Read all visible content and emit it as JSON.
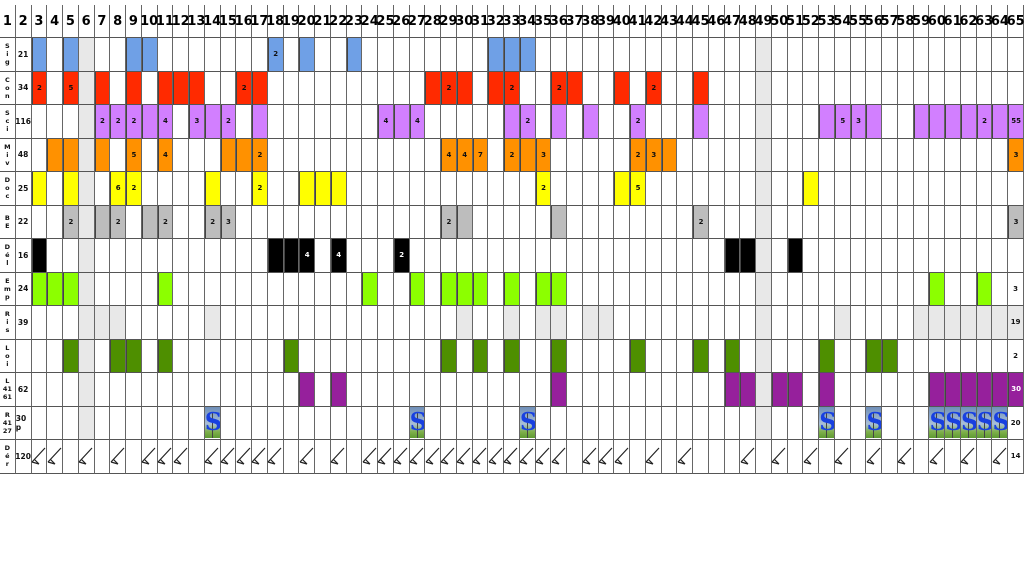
{
  "palette": {
    "blue": "#6fa0e6",
    "red": "#ff2a00",
    "violet": "#d27fff",
    "orange": "#ff9100",
    "yellow": "#ffff00",
    "gray": "#bdbdbd",
    "black": "#000000",
    "lime": "#8cff00",
    "lightgray": "#e8e8e8",
    "green": "#4e8f00",
    "purple": "#96209c",
    "column_shade": "#e8e8e8"
  },
  "header": [
    "1",
    "2",
    "3",
    "4",
    "5",
    "6",
    "7",
    "8",
    "9",
    "10",
    "11",
    "12",
    "13",
    "14",
    "15",
    "16",
    "17",
    "18",
    "19",
    "20",
    "21",
    "22",
    "23",
    "24",
    "25",
    "26",
    "27",
    "28",
    "29",
    "30",
    "31",
    "32",
    "33",
    "34",
    "35",
    "36",
    "37",
    "38",
    "39",
    "40",
    "41",
    "42",
    "43",
    "44",
    "45",
    "46",
    "47",
    "48",
    "49",
    "50",
    "51",
    "52",
    "53",
    "54",
    "55",
    "56",
    "57",
    "58",
    "59",
    "60",
    "61",
    "62",
    "63",
    "64",
    "65"
  ],
  "shaded_columns": [
    6,
    49
  ],
  "rows": [
    {
      "label": [
        "S",
        "i",
        "g"
      ],
      "total": "21",
      "fill": "blue",
      "cells": [
        {
          "c": 3
        },
        {
          "c": 5
        },
        {
          "c": 9
        },
        {
          "c": 10
        },
        {
          "c": 18,
          "t": "2"
        },
        {
          "c": 20
        },
        {
          "c": 23
        },
        {
          "c": 32
        },
        {
          "c": 33
        },
        {
          "c": 34
        }
      ]
    },
    {
      "label": [
        "C",
        "o",
        "n"
      ],
      "total": "34",
      "fill": "red",
      "cells": [
        {
          "c": 3,
          "t": "2"
        },
        {
          "c": 5,
          "t": "5"
        },
        {
          "c": 7
        },
        {
          "c": 9
        },
        {
          "c": 11
        },
        {
          "c": 12
        },
        {
          "c": 13
        },
        {
          "c": 16,
          "t": "2"
        },
        {
          "c": 17
        },
        {
          "c": 28
        },
        {
          "c": 29,
          "t": "2"
        },
        {
          "c": 30
        },
        {
          "c": 32
        },
        {
          "c": 33,
          "t": "2"
        },
        {
          "c": 36,
          "t": "2"
        },
        {
          "c": 37
        },
        {
          "c": 40
        },
        {
          "c": 42,
          "t": "2"
        },
        {
          "c": 45
        }
      ]
    },
    {
      "label": [
        "S",
        "c",
        "i"
      ],
      "total": "116",
      "fill": "violet",
      "cells": [
        {
          "c": 7,
          "t": "2"
        },
        {
          "c": 8,
          "t": "2"
        },
        {
          "c": 9,
          "t": "2"
        },
        {
          "c": 10
        },
        {
          "c": 11,
          "t": "4"
        },
        {
          "c": 13,
          "t": "3"
        },
        {
          "c": 14
        },
        {
          "c": 15,
          "t": "2"
        },
        {
          "c": 17
        },
        {
          "c": 25,
          "t": "4"
        },
        {
          "c": 26
        },
        {
          "c": 27,
          "t": "4"
        },
        {
          "c": 33
        },
        {
          "c": 34,
          "t": "2"
        },
        {
          "c": 36
        },
        {
          "c": 38
        },
        {
          "c": 41,
          "t": "2"
        },
        {
          "c": 45
        },
        {
          "c": 53
        },
        {
          "c": 54,
          "t": "5"
        },
        {
          "c": 55,
          "t": "3"
        },
        {
          "c": 56
        },
        {
          "c": 59
        },
        {
          "c": 60
        },
        {
          "c": 61
        },
        {
          "c": 62
        },
        {
          "c": 63,
          "t": "2"
        },
        {
          "c": 64
        },
        {
          "c": 65,
          "t": "55"
        }
      ]
    },
    {
      "label": [
        "M",
        "i",
        "v"
      ],
      "total": "48",
      "fill": "orange",
      "cells": [
        {
          "c": 4
        },
        {
          "c": 5
        },
        {
          "c": 7
        },
        {
          "c": 9,
          "t": "5"
        },
        {
          "c": 11,
          "t": "4"
        },
        {
          "c": 15
        },
        {
          "c": 16
        },
        {
          "c": 17,
          "t": "2"
        },
        {
          "c": 29,
          "t": "4"
        },
        {
          "c": 30,
          "t": "4"
        },
        {
          "c": 31,
          "t": "7"
        },
        {
          "c": 33,
          "t": "2"
        },
        {
          "c": 34
        },
        {
          "c": 35,
          "t": "3"
        },
        {
          "c": 41,
          "t": "2"
        },
        {
          "c": 42,
          "t": "3"
        },
        {
          "c": 43
        },
        {
          "c": 65,
          "t": "3"
        }
      ]
    },
    {
      "label": [
        "D",
        "o",
        "c"
      ],
      "total": "25",
      "fill": "yellow",
      "cells": [
        {
          "c": 3
        },
        {
          "c": 5
        },
        {
          "c": 8,
          "t": "6"
        },
        {
          "c": 9,
          "t": "2"
        },
        {
          "c": 14
        },
        {
          "c": 17,
          "t": "2"
        },
        {
          "c": 20
        },
        {
          "c": 21
        },
        {
          "c": 22
        },
        {
          "c": 35,
          "t": "2"
        },
        {
          "c": 40
        },
        {
          "c": 41,
          "t": "5"
        },
        {
          "c": 52
        }
      ]
    },
    {
      "label": [
        "B",
        "E"
      ],
      "total": "22",
      "fill": "gray",
      "cells": [
        {
          "c": 5,
          "t": "2"
        },
        {
          "c": 7
        },
        {
          "c": 8,
          "t": "2"
        },
        {
          "c": 10
        },
        {
          "c": 11,
          "t": "2"
        },
        {
          "c": 14,
          "t": "2"
        },
        {
          "c": 15,
          "t": "3"
        },
        {
          "c": 29,
          "t": "2"
        },
        {
          "c": 30
        },
        {
          "c": 36
        },
        {
          "c": 45,
          "t": "2"
        },
        {
          "c": 65,
          "t": "3"
        }
      ]
    },
    {
      "label": [
        "D",
        "é",
        "l"
      ],
      "total": "16",
      "fill": "black",
      "cells": [
        {
          "c": 3
        },
        {
          "c": 18
        },
        {
          "c": 19
        },
        {
          "c": 20,
          "t": "4"
        },
        {
          "c": 22,
          "t": "4"
        },
        {
          "c": 26,
          "t": "2"
        },
        {
          "c": 47
        },
        {
          "c": 48
        },
        {
          "c": 51
        }
      ]
    },
    {
      "label": [
        "E",
        "m",
        "p"
      ],
      "total": "24",
      "fill": "lime",
      "cells": [
        {
          "c": 3
        },
        {
          "c": 4
        },
        {
          "c": 5
        },
        {
          "c": 11
        },
        {
          "c": 24
        },
        {
          "c": 27
        },
        {
          "c": 29
        },
        {
          "c": 30
        },
        {
          "c": 31
        },
        {
          "c": 33
        },
        {
          "c": 35
        },
        {
          "c": 36
        },
        {
          "c": 60
        },
        {
          "c": 63
        },
        {
          "c": 65,
          "t": "3",
          "nofill": true
        }
      ]
    },
    {
      "label": [
        "R",
        "i",
        "s"
      ],
      "total": "39",
      "fill": "lightgray",
      "cells": [
        {
          "c": 7
        },
        {
          "c": 8
        },
        {
          "c": 14
        },
        {
          "c": 30
        },
        {
          "c": 33
        },
        {
          "c": 35
        },
        {
          "c": 36
        },
        {
          "c": 38
        },
        {
          "c": 39
        },
        {
          "c": 54
        },
        {
          "c": 59
        },
        {
          "c": 60
        },
        {
          "c": 61
        },
        {
          "c": 62
        },
        {
          "c": 63
        },
        {
          "c": 64
        },
        {
          "c": 65,
          "t": "19"
        }
      ]
    },
    {
      "label": [
        "L",
        "o",
        "i"
      ],
      "total": "",
      "fill": "green",
      "cells": [
        {
          "c": 5
        },
        {
          "c": 8
        },
        {
          "c": 9
        },
        {
          "c": 11
        },
        {
          "c": 19
        },
        {
          "c": 29
        },
        {
          "c": 31
        },
        {
          "c": 33
        },
        {
          "c": 36
        },
        {
          "c": 41
        },
        {
          "c": 45
        },
        {
          "c": 47
        },
        {
          "c": 53
        },
        {
          "c": 56
        },
        {
          "c": 57
        },
        {
          "c": 65,
          "t": "2",
          "nofill": true
        }
      ]
    },
    {
      "label": [
        "L",
        "41",
        "61"
      ],
      "total": "62",
      "fill": "purple",
      "cells": [
        {
          "c": 20
        },
        {
          "c": 22
        },
        {
          "c": 36
        },
        {
          "c": 47
        },
        {
          "c": 48
        },
        {
          "c": 50
        },
        {
          "c": 51
        },
        {
          "c": 53
        },
        {
          "c": 60
        },
        {
          "c": 61
        },
        {
          "c": 62
        },
        {
          "c": 63
        },
        {
          "c": 64
        },
        {
          "c": 65,
          "t": "30",
          "light": true
        }
      ]
    },
    {
      "label": [
        "R",
        "41",
        "27"
      ],
      "total": "30 p",
      "icon": "s-slide-icon",
      "icon_glyph": "S",
      "cells": [
        {
          "c": 14
        },
        {
          "c": 27
        },
        {
          "c": 34
        },
        {
          "c": 53
        },
        {
          "c": 56
        },
        {
          "c": 60
        },
        {
          "c": 61
        },
        {
          "c": 62
        },
        {
          "c": 63
        },
        {
          "c": 64
        },
        {
          "c": 65,
          "t": "20",
          "nofill": true
        }
      ]
    },
    {
      "label": [
        "D",
        "é",
        "r"
      ],
      "total": "120",
      "icon": "pen-stroke-icon",
      "cells": [
        {
          "c": 3
        },
        {
          "c": 4
        },
        {
          "c": 6
        },
        {
          "c": 8
        },
        {
          "c": 10
        },
        {
          "c": 11
        },
        {
          "c": 12
        },
        {
          "c": 14
        },
        {
          "c": 15
        },
        {
          "c": 16
        },
        {
          "c": 17
        },
        {
          "c": 18
        },
        {
          "c": 20
        },
        {
          "c": 22
        },
        {
          "c": 24
        },
        {
          "c": 25
        },
        {
          "c": 26
        },
        {
          "c": 27
        },
        {
          "c": 28
        },
        {
          "c": 29
        },
        {
          "c": 30
        },
        {
          "c": 31
        },
        {
          "c": 32
        },
        {
          "c": 33
        },
        {
          "c": 34
        },
        {
          "c": 35
        },
        {
          "c": 36
        },
        {
          "c": 38
        },
        {
          "c": 39
        },
        {
          "c": 40
        },
        {
          "c": 42
        },
        {
          "c": 44
        },
        {
          "c": 48
        },
        {
          "c": 50
        },
        {
          "c": 52
        },
        {
          "c": 54
        },
        {
          "c": 56
        },
        {
          "c": 58
        },
        {
          "c": 60
        },
        {
          "c": 62
        },
        {
          "c": 64
        },
        {
          "c": 65,
          "t": "14",
          "nofill": true
        }
      ]
    }
  ]
}
